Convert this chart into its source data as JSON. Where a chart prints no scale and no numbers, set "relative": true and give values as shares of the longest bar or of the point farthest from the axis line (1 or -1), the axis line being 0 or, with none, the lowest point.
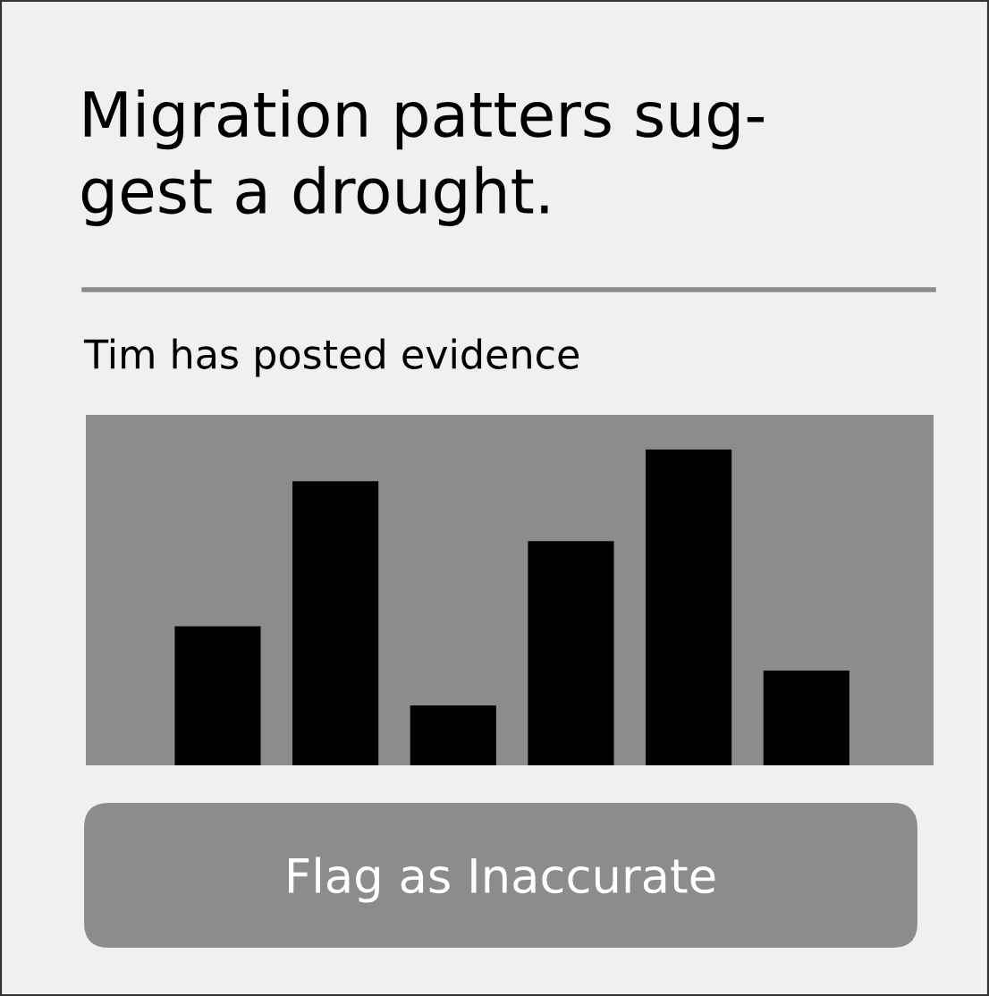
{
  "chart_data": {
    "type": "bar",
    "title": "Migration patters sug-\ngest a drought.",
    "subtitle": "Tim has posted evidence",
    "categories": [
      null,
      null,
      null,
      null,
      null,
      null
    ],
    "values": [
      0.44,
      0.9,
      0.19,
      0.71,
      1,
      0.3
    ],
    "color": "#000000",
    "relative": true,
    "annotations": [
      "Flag as Inaccurate"
    ]
  }
}
